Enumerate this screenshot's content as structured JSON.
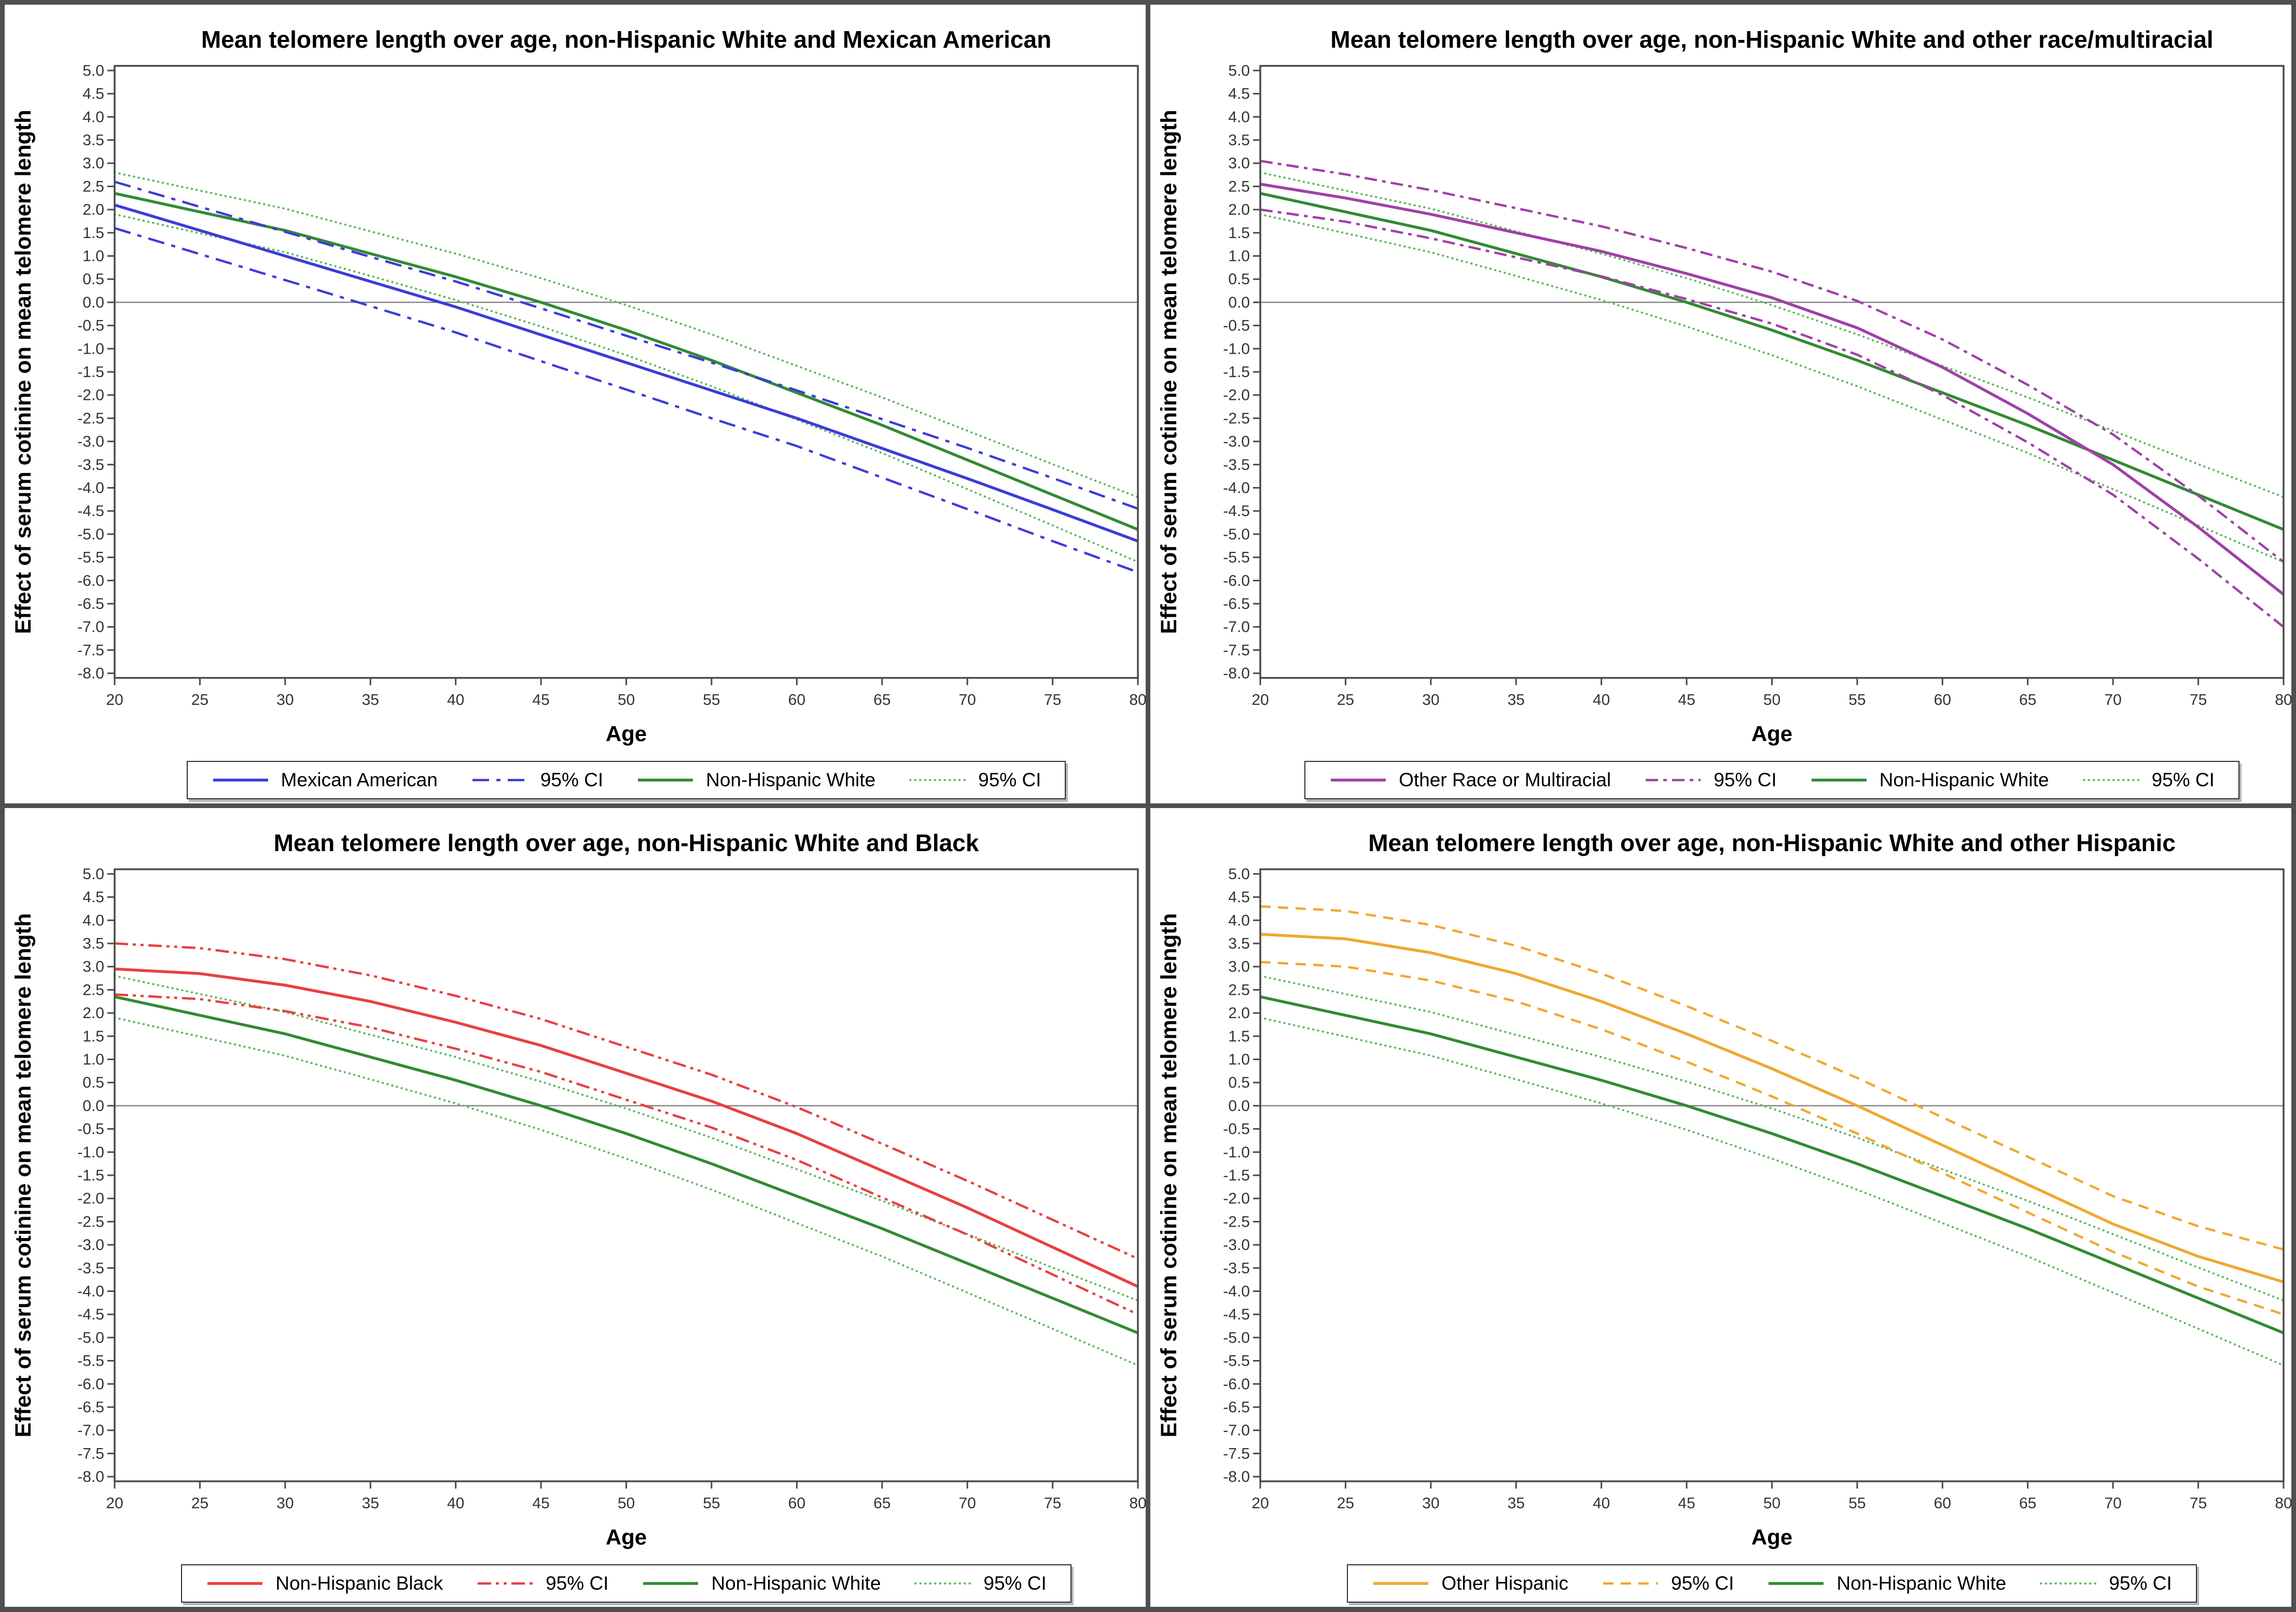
{
  "figure": {
    "background": "#ffffff",
    "colors": {
      "blue": "#3c3cd8",
      "purple": "#a040a8",
      "red": "#e84040",
      "orange": "#f0a830",
      "green": "#338a33",
      "green_ci": "#5cb85c",
      "frame": "#4a4a4a",
      "zero_line": "#858585",
      "tick_text": "#333333",
      "title_text": "#000000"
    },
    "axes": {
      "xlabel": "Age",
      "ylabel": "Effect of serum cotinine on mean telomere length",
      "xlim": [
        20,
        80
      ],
      "ylim": [
        -8.1,
        5.1
      ],
      "x_ticks": [
        20,
        25,
        30,
        35,
        40,
        45,
        50,
        55,
        60,
        65,
        70,
        75,
        80
      ],
      "y_ticks": [
        "5.0",
        "4.5",
        "4.0",
        "3.5",
        "3.0",
        "2.5",
        "2.0",
        "1.5",
        "1.0",
        "0.5",
        "0.0",
        "-0.5",
        "-1.0",
        "-1.5",
        "-2.0",
        "-2.5",
        "-3.0",
        "-3.5",
        "-4.0",
        "-4.5",
        "-5.0",
        "-5.5",
        "-6.0",
        "-6.5",
        "-7.0",
        "-7.5",
        "-8.0"
      ],
      "zero_reference_line": 0.0,
      "grid": "off",
      "legend_position": "bottom"
    }
  },
  "chart_data": [
    {
      "type": "line",
      "title": "Mean telomere length over age, non-Hispanic White and Mexican American",
      "xlabel": "Age",
      "ylabel": "Effect of serum cotinine on mean telomere length",
      "x": [
        20,
        25,
        30,
        35,
        40,
        45,
        50,
        55,
        60,
        65,
        70,
        75,
        80
      ],
      "series": [
        {
          "name": "Non-Hispanic White 95% CI upper",
          "color": "green_ci",
          "style": "dotted",
          "values": [
            2.8,
            2.41,
            2.02,
            1.53,
            1.05,
            0.52,
            -0.06,
            -0.69,
            -1.37,
            -2.05,
            -2.77,
            -3.49,
            -4.2
          ]
        },
        {
          "name": "Non-Hispanic White 95% CI lower",
          "color": "green_ci",
          "style": "dotted",
          "values": [
            1.9,
            1.49,
            1.08,
            0.57,
            0.05,
            -0.52,
            -1.14,
            -1.81,
            -2.53,
            -3.25,
            -4.03,
            -4.81,
            -5.6
          ]
        },
        {
          "name": "Non-Hispanic White",
          "color": "green",
          "style": "solid",
          "values": [
            2.35,
            1.95,
            1.55,
            1.05,
            0.55,
            0.0,
            -0.6,
            -1.25,
            -1.95,
            -2.65,
            -3.4,
            -4.15,
            -4.9
          ]
        },
        {
          "name": "Mexican American 95% CI upper",
          "color": "blue",
          "style": "dashdot",
          "values": [
            2.6,
            2.06,
            1.52,
            0.98,
            0.45,
            -0.13,
            -0.72,
            -1.3,
            -1.9,
            -2.52,
            -3.14,
            -3.79,
            -4.45
          ]
        },
        {
          "name": "Mexican American 95% CI lower",
          "color": "blue",
          "style": "dashdot",
          "values": [
            1.6,
            1.04,
            0.48,
            -0.08,
            -0.65,
            -1.27,
            -1.88,
            -2.5,
            -3.1,
            -3.78,
            -4.46,
            -5.15,
            -5.82
          ]
        },
        {
          "name": "Mexican American",
          "color": "blue",
          "style": "solid",
          "values": [
            2.1,
            1.55,
            1.0,
            0.45,
            -0.1,
            -0.7,
            -1.3,
            -1.9,
            -2.5,
            -3.15,
            -3.8,
            -4.47,
            -5.15
          ]
        }
      ],
      "legend": [
        {
          "label": "Mexican American",
          "color": "blue",
          "style": "solid"
        },
        {
          "label": "95% CI",
          "color": "blue",
          "style": "dashdot"
        },
        {
          "label": "Non-Hispanic White",
          "color": "green",
          "style": "solid"
        },
        {
          "label": "95% CI",
          "color": "green_ci",
          "style": "dotted"
        }
      ]
    },
    {
      "type": "line",
      "title": "Mean telomere length over age, non-Hispanic White and other race/multiracial",
      "xlabel": "Age",
      "ylabel": "Effect of serum cotinine on mean telomere length",
      "x": [
        20,
        25,
        30,
        35,
        40,
        45,
        50,
        55,
        60,
        65,
        70,
        75,
        80
      ],
      "series": [
        {
          "name": "Non-Hispanic White 95% CI upper",
          "color": "green_ci",
          "style": "dotted",
          "values": [
            2.8,
            2.41,
            2.02,
            1.53,
            1.05,
            0.52,
            -0.06,
            -0.69,
            -1.37,
            -2.05,
            -2.77,
            -3.49,
            -4.2
          ]
        },
        {
          "name": "Non-Hispanic White 95% CI lower",
          "color": "green_ci",
          "style": "dotted",
          "values": [
            1.9,
            1.49,
            1.08,
            0.57,
            0.05,
            -0.52,
            -1.14,
            -1.81,
            -2.53,
            -3.25,
            -4.03,
            -4.81,
            -5.6
          ]
        },
        {
          "name": "Non-Hispanic White",
          "color": "green",
          "style": "solid",
          "values": [
            2.35,
            1.95,
            1.55,
            1.05,
            0.55,
            0.0,
            -0.6,
            -1.25,
            -1.95,
            -2.65,
            -3.4,
            -4.15,
            -4.9
          ]
        },
        {
          "name": "Other Race or Multiracial 95% CI upper",
          "color": "purple",
          "style": "dashdot2",
          "values": [
            3.05,
            2.76,
            2.42,
            2.03,
            1.64,
            1.17,
            0.66,
            0.03,
            -0.8,
            -1.78,
            -2.85,
            -4.17,
            -5.6
          ]
        },
        {
          "name": "Other Race or Multiracial 95% CI lower",
          "color": "purple",
          "style": "dashdot2",
          "values": [
            2.0,
            1.74,
            1.38,
            0.97,
            0.56,
            0.07,
            -0.46,
            -1.13,
            -2.0,
            -3.02,
            -4.15,
            -5.53,
            -7.0
          ]
        },
        {
          "name": "Other Race or Multiracial",
          "color": "purple",
          "style": "solid",
          "values": [
            2.55,
            2.25,
            1.9,
            1.5,
            1.1,
            0.62,
            0.1,
            -0.55,
            -1.4,
            -2.4,
            -3.5,
            -4.85,
            -6.3
          ]
        }
      ],
      "legend": [
        {
          "label": "Other Race or Multiracial",
          "color": "purple",
          "style": "solid"
        },
        {
          "label": "95% CI",
          "color": "purple",
          "style": "dashdot2"
        },
        {
          "label": "Non-Hispanic White",
          "color": "green",
          "style": "solid"
        },
        {
          "label": "95% CI",
          "color": "green_ci",
          "style": "dotted"
        }
      ]
    },
    {
      "type": "line",
      "title": "Mean telomere length over age, non-Hispanic White and Black",
      "xlabel": "Age",
      "ylabel": "Effect of serum cotinine on mean telomere length",
      "x": [
        20,
        25,
        30,
        35,
        40,
        45,
        50,
        55,
        60,
        65,
        70,
        75,
        80
      ],
      "series": [
        {
          "name": "Non-Hispanic White 95% CI upper",
          "color": "green_ci",
          "style": "dotted",
          "values": [
            2.8,
            2.41,
            2.02,
            1.53,
            1.05,
            0.52,
            -0.06,
            -0.69,
            -1.37,
            -2.05,
            -2.77,
            -3.49,
            -4.2
          ]
        },
        {
          "name": "Non-Hispanic White 95% CI lower",
          "color": "green_ci",
          "style": "dotted",
          "values": [
            1.9,
            1.49,
            1.08,
            0.57,
            0.05,
            -0.52,
            -1.14,
            -1.81,
            -2.53,
            -3.25,
            -4.03,
            -4.81,
            -5.6
          ]
        },
        {
          "name": "Non-Hispanic White",
          "color": "green",
          "style": "solid",
          "values": [
            2.35,
            1.95,
            1.55,
            1.05,
            0.55,
            0.0,
            -0.6,
            -1.25,
            -1.95,
            -2.65,
            -3.4,
            -4.15,
            -4.9
          ]
        },
        {
          "name": "Non-Hispanic Black 95% CI upper",
          "color": "red",
          "style": "dashdotdot",
          "values": [
            3.5,
            3.4,
            3.16,
            2.81,
            2.37,
            1.87,
            1.27,
            0.67,
            -0.03,
            -0.82,
            -1.62,
            -2.46,
            -3.3
          ]
        },
        {
          "name": "Non-Hispanic Black 95% CI lower",
          "color": "red",
          "style": "dashdotdot",
          "values": [
            2.4,
            2.3,
            2.04,
            1.69,
            1.23,
            0.73,
            0.13,
            -0.47,
            -1.17,
            -1.98,
            -2.78,
            -3.64,
            -4.5
          ]
        },
        {
          "name": "Non-Hispanic Black",
          "color": "red",
          "style": "solid",
          "values": [
            2.95,
            2.85,
            2.6,
            2.25,
            1.8,
            1.3,
            0.7,
            0.1,
            -0.6,
            -1.4,
            -2.2,
            -3.05,
            -3.9
          ]
        }
      ],
      "legend": [
        {
          "label": "Non-Hispanic Black",
          "color": "red",
          "style": "solid"
        },
        {
          "label": "95% CI",
          "color": "red",
          "style": "dashdotdot"
        },
        {
          "label": "Non-Hispanic White",
          "color": "green",
          "style": "solid"
        },
        {
          "label": "95% CI",
          "color": "green_ci",
          "style": "dotted"
        }
      ]
    },
    {
      "type": "line",
      "title": "Mean telomere length over age, non-Hispanic White and other Hispanic",
      "xlabel": "Age",
      "ylabel": "Effect of serum cotinine on mean telomere length",
      "x": [
        20,
        25,
        30,
        35,
        40,
        45,
        50,
        55,
        60,
        65,
        70,
        75,
        80
      ],
      "series": [
        {
          "name": "Non-Hispanic White 95% CI upper",
          "color": "green_ci",
          "style": "dotted",
          "values": [
            2.8,
            2.41,
            2.02,
            1.53,
            1.05,
            0.52,
            -0.06,
            -0.69,
            -1.37,
            -2.05,
            -2.77,
            -3.49,
            -4.2
          ]
        },
        {
          "name": "Non-Hispanic White 95% CI lower",
          "color": "green_ci",
          "style": "dotted",
          "values": [
            1.9,
            1.49,
            1.08,
            0.57,
            0.05,
            -0.52,
            -1.14,
            -1.81,
            -2.53,
            -3.25,
            -4.03,
            -4.81,
            -5.6
          ]
        },
        {
          "name": "Non-Hispanic White",
          "color": "green",
          "style": "solid",
          "values": [
            2.35,
            1.95,
            1.55,
            1.05,
            0.55,
            0.0,
            -0.6,
            -1.25,
            -1.95,
            -2.65,
            -3.4,
            -4.15,
            -4.9
          ]
        },
        {
          "name": "Other Hispanic 95% CI upper",
          "color": "orange",
          "style": "dashed",
          "values": [
            4.3,
            4.2,
            3.9,
            3.45,
            2.85,
            2.15,
            1.4,
            0.6,
            -0.25,
            -1.1,
            -1.95,
            -2.6,
            -3.1
          ]
        },
        {
          "name": "Other Hispanic 95% CI lower",
          "color": "orange",
          "style": "dashed",
          "values": [
            3.1,
            3.0,
            2.7,
            2.25,
            1.65,
            0.95,
            0.2,
            -0.6,
            -1.45,
            -2.3,
            -3.15,
            -3.9,
            -4.5
          ]
        },
        {
          "name": "Other Hispanic",
          "color": "orange",
          "style": "solid",
          "values": [
            3.7,
            3.6,
            3.3,
            2.85,
            2.25,
            1.55,
            0.8,
            0.0,
            -0.85,
            -1.7,
            -2.55,
            -3.25,
            -3.8
          ]
        }
      ],
      "legend": [
        {
          "label": "Other Hispanic",
          "color": "orange",
          "style": "solid"
        },
        {
          "label": "95% CI",
          "color": "orange",
          "style": "dashed"
        },
        {
          "label": "Non-Hispanic White",
          "color": "green",
          "style": "solid"
        },
        {
          "label": "95% CI",
          "color": "green_ci",
          "style": "dotted"
        }
      ]
    }
  ]
}
